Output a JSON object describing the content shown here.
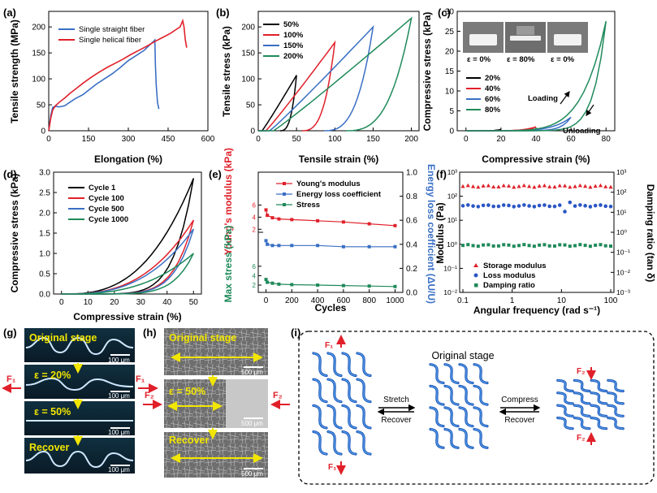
{
  "panels": {
    "a": {
      "label": "(a)",
      "xlabel": "Elongation (%)",
      "ylabel": "Tensile strength (MPa)",
      "xticks": [
        "0",
        "150",
        "300",
        "450",
        "600"
      ],
      "yticks": [
        "0",
        "50",
        "100",
        "150",
        "200"
      ]
    },
    "b": {
      "label": "(b)",
      "xlabel": "Tensile strain (%)",
      "ylabel": "Tensile stress (kPa)",
      "xticks": [
        "0",
        "50",
        "100",
        "150",
        "200"
      ],
      "yticks": [
        "0",
        "50",
        "100",
        "150",
        "200"
      ]
    },
    "c": {
      "label": "(c)",
      "xlabel": "Compressive strain (%)",
      "ylabel": "Compressive stress (kPa)",
      "xticks": [
        "0",
        "20",
        "40",
        "60",
        "80"
      ],
      "yticks": [
        "0",
        "5",
        "10",
        "15",
        "20",
        "25",
        "30"
      ],
      "photo_labels": [
        "ε = 0%",
        "ε = 80%",
        "ε = 0%"
      ],
      "loading": "Loading",
      "unloading": "Unloading"
    },
    "d": {
      "label": "(d)",
      "xlabel": "Compressive strain (%)",
      "ylabel": "Compressive stress (kPa)",
      "xticks": [
        "0",
        "10",
        "20",
        "30",
        "40",
        "50"
      ],
      "yticks": [
        "0.0",
        "0.5",
        "1.0",
        "1.5",
        "2.0",
        "2.5",
        "3.0"
      ]
    },
    "e": {
      "label": "(e)",
      "xlabel": "Cycles",
      "ylabel_left_top": "Young's modulus (kPa)",
      "ylabel_left_bottom": "Max stress (kPa)",
      "ylabel_right": "Energy loss coefficient (ΔU/U)",
      "xticks": [
        "0",
        "200",
        "400",
        "600",
        "800",
        "1000"
      ],
      "yticks_right": [
        "0.0",
        "0.2",
        "0.4",
        "0.6",
        "0.8",
        "1.0"
      ],
      "yticks_left_top": [
        "2",
        "4",
        "6"
      ],
      "yticks_left_bottom": [
        "2",
        "4",
        "6"
      ]
    },
    "f": {
      "label": "(f)",
      "xlabel": "Angular frequency (rad s⁻¹)",
      "ylabel": "Modulus (Pa)",
      "ylabel_right": "Damping ratio (tan δ)",
      "xticks": [
        "0.1",
        "1",
        "10",
        "100"
      ],
      "yticks": [
        "10⁻²",
        "10⁻¹",
        "10⁰",
        "10¹",
        "10²",
        "10³"
      ],
      "yticks_right": [
        "10⁻³",
        "10⁻²",
        "10⁻¹",
        "10⁰",
        "10¹",
        "10²",
        "10³"
      ]
    },
    "g": {
      "label": "(g)",
      "stages": [
        "Original stage",
        "ε = 20%",
        "ε = 50%",
        "Recover"
      ],
      "scale": "100 μm",
      "force": "F₁"
    },
    "h": {
      "label": "(h)",
      "stages": [
        "Original stage",
        "ε = 50%",
        "Recover"
      ],
      "scale": "500 μm",
      "force": "F₂"
    },
    "i": {
      "label": "(i)",
      "title": "Original stage",
      "stretch": "Stretch",
      "recover": "Recover",
      "compress": "Compress",
      "f1": "F₁",
      "f2": "F₂"
    }
  },
  "chart_data": [
    {
      "panel": "a",
      "type": "line",
      "xlim": [
        0,
        600
      ],
      "ylim": [
        0,
        230
      ],
      "series": [
        {
          "name": "Single straight fiber",
          "color": "#3a6fc4",
          "x": [
            0,
            8,
            15,
            25,
            40,
            60,
            80,
            100,
            130,
            150,
            180,
            210,
            240,
            270,
            300,
            330,
            360,
            380,
            395,
            400,
            402,
            405,
            410,
            415
          ],
          "y": [
            0,
            30,
            45,
            47,
            46,
            48,
            55,
            62,
            70,
            78,
            90,
            100,
            110,
            122,
            135,
            145,
            155,
            165,
            172,
            175,
            130,
            90,
            55,
            42
          ]
        },
        {
          "name": "Single helical fiber",
          "color": "#e0202a",
          "x": [
            0,
            8,
            15,
            25,
            40,
            60,
            80,
            100,
            130,
            160,
            190,
            220,
            250,
            280,
            310,
            340,
            370,
            400,
            430,
            460,
            480,
            495,
            505,
            510,
            515,
            520
          ],
          "y": [
            0,
            25,
            40,
            48,
            55,
            63,
            72,
            80,
            92,
            103,
            113,
            122,
            130,
            138,
            147,
            155,
            163,
            172,
            180,
            188,
            195,
            200,
            212,
            200,
            175,
            160
          ]
        }
      ]
    },
    {
      "panel": "b",
      "type": "line",
      "xlim": [
        0,
        210
      ],
      "ylim": [
        0,
        230
      ],
      "series": [
        {
          "name": "50%",
          "color": "#000000",
          "max_strain": 50,
          "max_stress": 107
        },
        {
          "name": "100%",
          "color": "#e0202a",
          "max_strain": 100,
          "max_stress": 170
        },
        {
          "name": "150%",
          "color": "#3a6fc4",
          "max_strain": 150,
          "max_stress": 200
        },
        {
          "name": "200%",
          "color": "#1f8a5a",
          "max_strain": 200,
          "max_stress": 217
        }
      ]
    },
    {
      "panel": "c",
      "type": "line",
      "xlim": [
        -5,
        85
      ],
      "ylim": [
        0,
        30
      ],
      "series": [
        {
          "name": "20%",
          "color": "#000000",
          "max_strain": 20,
          "max_stress": 0.35
        },
        {
          "name": "40%",
          "color": "#e0202a",
          "max_strain": 40,
          "max_stress": 1.0
        },
        {
          "name": "60%",
          "color": "#3a6fc4",
          "max_strain": 60,
          "max_stress": 3.4
        },
        {
          "name": "80%",
          "color": "#1f8a5a",
          "max_strain": 80,
          "max_stress": 27.5
        }
      ]
    },
    {
      "panel": "d",
      "type": "line",
      "xlim": [
        -3,
        53
      ],
      "ylim": [
        0,
        3.0
      ],
      "series": [
        {
          "name": "Cycle 1",
          "color": "#000000",
          "max_stress": 2.85
        },
        {
          "name": "Cycle 100",
          "color": "#e0202a",
          "max_stress": 1.82
        },
        {
          "name": "Cycle 500",
          "color": "#3a6fc4",
          "max_stress": 1.6
        },
        {
          "name": "Cycle 1000",
          "color": "#1f8a5a",
          "max_stress": 1.0
        }
      ]
    },
    {
      "panel": "e",
      "type": "line",
      "x": [
        0,
        10,
        50,
        100,
        200,
        400,
        600,
        800,
        1000
      ],
      "series": [
        {
          "name": "Young's modulus",
          "color": "#e0202a",
          "axis": "left_top",
          "values": [
            5.2,
            4.3,
            3.9,
            3.7,
            3.6,
            3.4,
            3.2,
            2.9,
            2.6
          ]
        },
        {
          "name": "Energy loss coefficient",
          "color": "#3a6fc4",
          "axis": "right",
          "values": [
            0.43,
            0.4,
            0.39,
            0.39,
            0.39,
            0.39,
            0.38,
            0.38,
            0.38
          ]
        },
        {
          "name": "Stress",
          "color": "#1f8a5a",
          "axis": "left_bottom",
          "values": [
            3.2,
            2.6,
            2.4,
            2.2,
            2.1,
            2.0,
            1.9,
            1.8,
            1.7
          ]
        }
      ]
    },
    {
      "panel": "f",
      "type": "scatter",
      "xscale": "log",
      "yscale": "log",
      "xlim": [
        0.1,
        100
      ],
      "ylim": [
        0.01,
        1000
      ],
      "series": [
        {
          "name": "Storage modulus",
          "color": "#e0202a",
          "marker": "triangle",
          "value": 260
        },
        {
          "name": "Loss modulus",
          "color": "#2a56c4",
          "marker": "circle",
          "value": 40
        },
        {
          "name": "Damping ratio",
          "color": "#1f8a5a",
          "marker": "square",
          "value": 0.9
        }
      ]
    }
  ]
}
